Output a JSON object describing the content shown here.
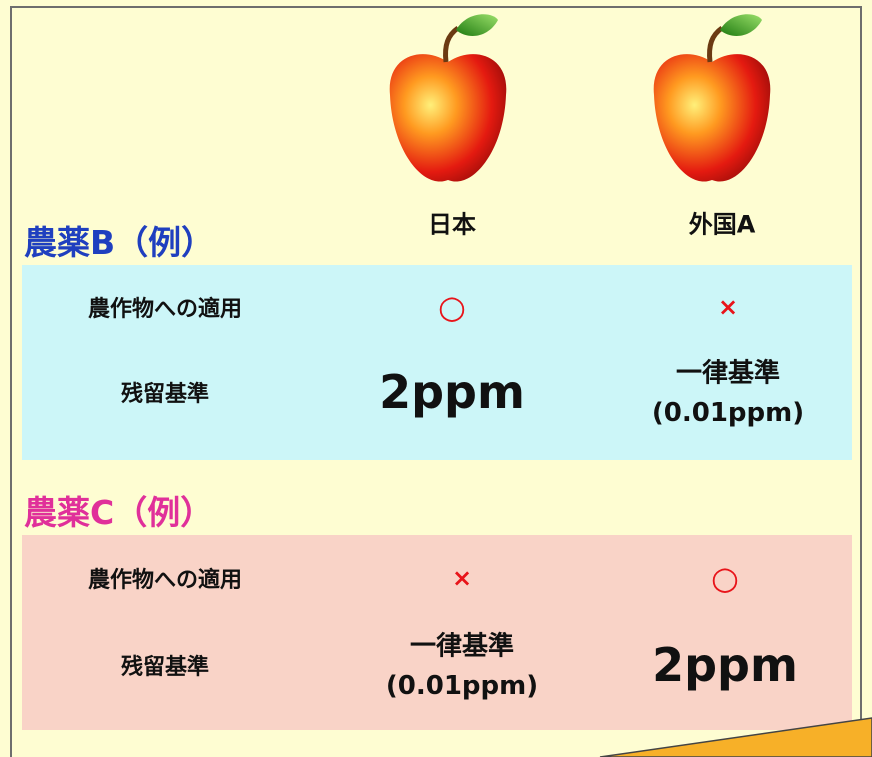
{
  "columns": [
    "日本",
    "外国A"
  ],
  "sections": [
    {
      "title": "農薬B（例）",
      "rows": [
        {
          "label": "農作物への適用",
          "cells": [
            [
              "○"
            ],
            [
              "×"
            ]
          ]
        },
        {
          "label": "残留基準",
          "cells": [
            [
              "2ppm"
            ],
            [
              "一律基準",
              "(0.01ppm)"
            ]
          ]
        }
      ]
    },
    {
      "title": "農薬C（例）",
      "rows": [
        {
          "label": "農作物への適用",
          "cells": [
            [
              "×"
            ],
            [
              "○"
            ]
          ]
        },
        {
          "label": "残留基準",
          "cells": [
            [
              "一律基準",
              "(0.01ppm)"
            ],
            [
              "2ppm"
            ]
          ]
        }
      ]
    }
  ]
}
